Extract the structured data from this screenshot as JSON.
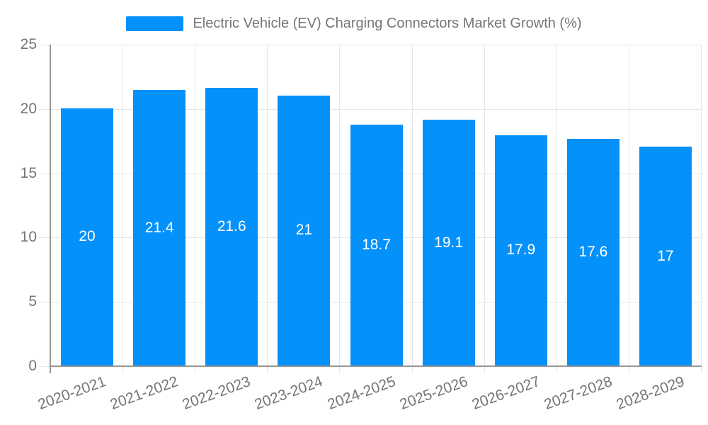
{
  "colors": {
    "bar": "#0591fa",
    "axis_line": "#969696",
    "gridline": "#e6e6e6",
    "tick_label_text": "#757575",
    "value_label_text": "#ffffff",
    "background": "#ffffff"
  },
  "legend": {
    "swatch_icon": "blue-rect-swatch",
    "label": "Electric Vehicle (EV) Charging Connectors Market Growth (%)"
  },
  "chart_data": {
    "type": "bar",
    "title": "Electric Vehicle (EV) Charging Connectors Market Growth (%)",
    "legend_entries": [
      "Electric Vehicle (EV) Charging Connectors Market Growth (%)"
    ],
    "legend_position": "top",
    "categories": [
      "2020-2021",
      "2021-2022",
      "2022-2023",
      "2023-2024",
      "2024-2025",
      "2025-2026",
      "2026-2027",
      "2027-2028",
      "2028-2029"
    ],
    "values": [
      20,
      21.4,
      21.6,
      21,
      18.7,
      19.1,
      17.9,
      17.6,
      17
    ],
    "value_labels": [
      "20",
      "21.4",
      "21.6",
      "21",
      "18.7",
      "19.1",
      "17.9",
      "17.6",
      "17"
    ],
    "value_label_position": "center-of-bar",
    "xlabel": "",
    "ylabel": "",
    "ylim": [
      0,
      25
    ],
    "yticks": [
      0,
      5,
      10,
      15,
      20,
      25
    ],
    "grid": true,
    "x_tick_rotation_deg": -20
  }
}
